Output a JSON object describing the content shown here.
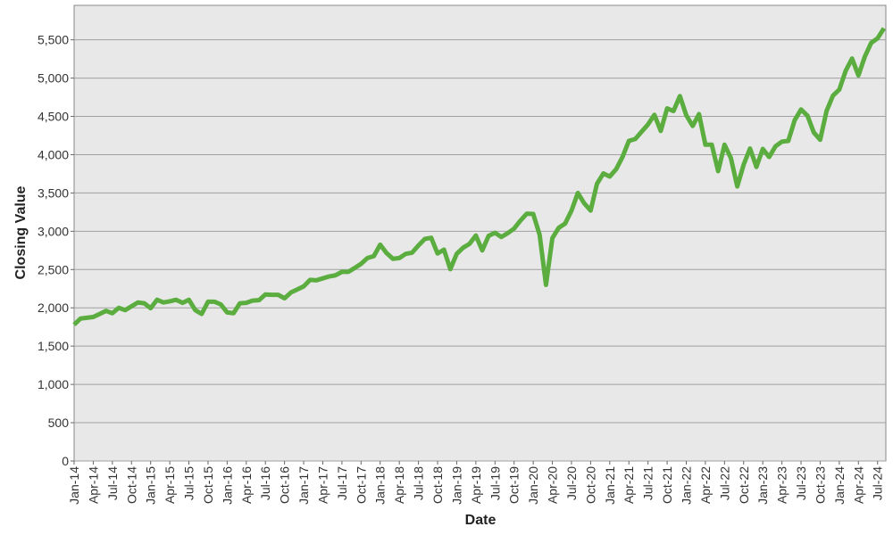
{
  "chart_data": {
    "type": "line",
    "x_label": "Date",
    "y_label": "Closing Value",
    "categories": [
      "Jan-14",
      null,
      null,
      "Apr-14",
      null,
      null,
      "Jul-14",
      null,
      null,
      "Oct-14",
      null,
      null,
      "Jan-15",
      null,
      null,
      "Apr-15",
      null,
      null,
      "Jul-15",
      null,
      null,
      "Oct-15",
      null,
      null,
      "Jan-16",
      null,
      null,
      "Apr-16",
      null,
      null,
      "Jul-16",
      null,
      null,
      "Oct-16",
      null,
      null,
      "Jan-17",
      null,
      null,
      "Apr-17",
      null,
      null,
      "Jul-17",
      null,
      null,
      "Oct-17",
      null,
      null,
      "Jan-18",
      null,
      null,
      "Apr-18",
      null,
      null,
      "Jul-18",
      null,
      null,
      "Oct-18",
      null,
      null,
      "Jan-19",
      null,
      null,
      "Apr-19",
      null,
      null,
      "Jul-19",
      null,
      null,
      "Oct-19",
      null,
      null,
      "Jan-20",
      null,
      null,
      "Apr-20",
      null,
      null,
      "Jul-20",
      null,
      null,
      "Oct-20",
      null,
      null,
      "Jan-21",
      null,
      null,
      "Apr-21",
      null,
      null,
      "Jul-21",
      null,
      null,
      "Oct-21",
      null,
      null,
      "Jan-22",
      null,
      null,
      "Apr-22",
      null,
      null,
      "Jul-22",
      null,
      null,
      "Oct-22",
      null,
      null,
      "Jan-23",
      null,
      null,
      "Apr-23",
      null,
      null,
      "Jul-23",
      null,
      null,
      "Oct-23",
      null,
      null,
      "Jan-24",
      null,
      null,
      "Apr-24",
      null,
      null,
      "Jul-24",
      null
    ],
    "values": [
      1780,
      1860,
      1870,
      1880,
      1920,
      1960,
      1930,
      2000,
      1970,
      2020,
      2070,
      2060,
      1995,
      2105,
      2070,
      2085,
      2105,
      2065,
      2105,
      1970,
      1920,
      2080,
      2080,
      2045,
      1940,
      1930,
      2060,
      2065,
      2095,
      2100,
      2175,
      2170,
      2170,
      2125,
      2200,
      2240,
      2280,
      2365,
      2360,
      2385,
      2410,
      2425,
      2470,
      2470,
      2520,
      2575,
      2650,
      2675,
      2825,
      2715,
      2640,
      2650,
      2705,
      2720,
      2815,
      2900,
      2915,
      2710,
      2760,
      2505,
      2705,
      2785,
      2835,
      2945,
      2750,
      2940,
      2980,
      2925,
      2975,
      3035,
      3140,
      3230,
      3225,
      2955,
      2300,
      2910,
      3045,
      3100,
      3270,
      3500,
      3365,
      3270,
      3620,
      3755,
      3715,
      3810,
      3970,
      4180,
      4205,
      4300,
      4395,
      4520,
      4310,
      4605,
      4570,
      4765,
      4515,
      4375,
      4530,
      4130,
      4130,
      3785,
      4130,
      3955,
      3585,
      3870,
      4080,
      3840,
      4075,
      3970,
      4110,
      4170,
      4180,
      4450,
      4590,
      4510,
      4290,
      4195,
      4570,
      4770,
      4850,
      5095,
      5255,
      5035,
      5280,
      5460,
      5520,
      5650
    ],
    "color": "#5aad3e",
    "ylim": [
      0,
      5950
    ],
    "yticks": [
      0,
      500,
      {
        "value": 1000,
        "label": "1,000"
      },
      {
        "value": 1500,
        "label": "1,500"
      },
      {
        "value": 2000,
        "label": "2,000"
      },
      {
        "value": 2500,
        "label": "2,500"
      },
      {
        "value": 3000,
        "label": "3,000"
      },
      {
        "value": 3500,
        "label": "3,500"
      },
      {
        "value": 4000,
        "label": "4,000"
      },
      {
        "value": 4500,
        "label": "4,500"
      },
      {
        "value": 5000,
        "label": "5,000"
      },
      {
        "value": 5500,
        "label": "5,500"
      }
    ],
    "grid": true
  }
}
